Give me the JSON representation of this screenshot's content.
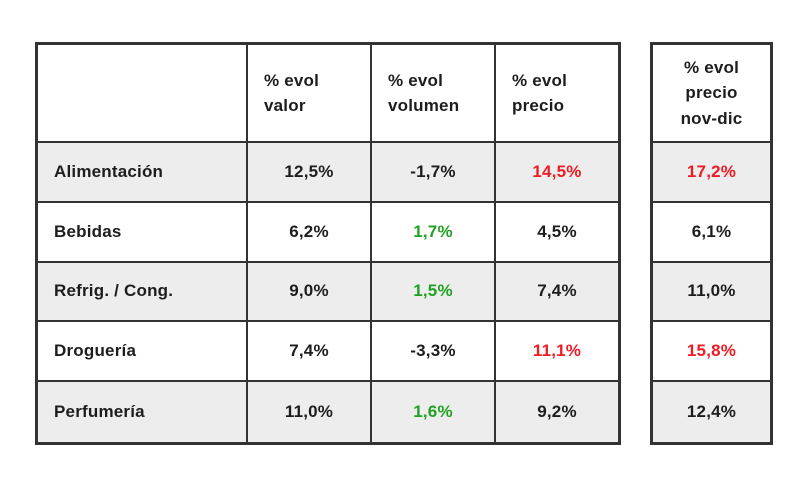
{
  "colors": {
    "text": "#1d1d1d",
    "border": "#333333",
    "row_alt": "#ededed",
    "red": "#ee1c25",
    "green": "#21a121"
  },
  "main_table": {
    "corner": "",
    "headers": [
      "% evol\nvalor",
      "% evol\nvolumen",
      "% evol\nprecio"
    ],
    "rows": [
      {
        "label": "Alimentación",
        "cells": [
          {
            "value": "12,5%",
            "tone": "dark"
          },
          {
            "value": "-1,7%",
            "tone": "dark"
          },
          {
            "value": "14,5%",
            "tone": "red"
          }
        ]
      },
      {
        "label": "Bebidas",
        "cells": [
          {
            "value": "6,2%",
            "tone": "dark"
          },
          {
            "value": "1,7%",
            "tone": "green"
          },
          {
            "value": "4,5%",
            "tone": "dark"
          }
        ]
      },
      {
        "label": "Refrig. / Cong.",
        "cells": [
          {
            "value": "9,0%",
            "tone": "dark"
          },
          {
            "value": "1,5%",
            "tone": "green"
          },
          {
            "value": "7,4%",
            "tone": "dark"
          }
        ]
      },
      {
        "label": "Droguería",
        "cells": [
          {
            "value": "7,4%",
            "tone": "dark"
          },
          {
            "value": "-3,3%",
            "tone": "dark"
          },
          {
            "value": "11,1%",
            "tone": "red"
          }
        ]
      },
      {
        "label": "Perfumería",
        "cells": [
          {
            "value": "11,0%",
            "tone": "dark"
          },
          {
            "value": "1,6%",
            "tone": "green"
          },
          {
            "value": "9,2%",
            "tone": "dark"
          }
        ]
      }
    ]
  },
  "side_table": {
    "header": "% evol\nprecio\nnov-dic",
    "cells": [
      {
        "value": "17,2%",
        "tone": "red"
      },
      {
        "value": "6,1%",
        "tone": "dark"
      },
      {
        "value": "11,0%",
        "tone": "dark"
      },
      {
        "value": "15,8%",
        "tone": "red"
      },
      {
        "value": "12,4%",
        "tone": "dark"
      }
    ]
  },
  "chart_data": {
    "type": "table",
    "columns": [
      "",
      "% evol valor",
      "% evol volumen",
      "% evol precio",
      "% evol precio nov-dic"
    ],
    "rows": [
      [
        "Alimentación",
        "12,5%",
        "-1,7%",
        "14,5%",
        "17,2%"
      ],
      [
        "Bebidas",
        "6,2%",
        "1,7%",
        "4,5%",
        "6,1%"
      ],
      [
        "Refrig. / Cong.",
        "9,0%",
        "1,5%",
        "7,4%",
        "11,0%"
      ],
      [
        "Droguería",
        "7,4%",
        "-3,3%",
        "11,1%",
        "15,8%"
      ],
      [
        "Perfumería",
        "11,0%",
        "1,6%",
        "9,2%",
        "12,4%"
      ]
    ],
    "highlights": {
      "red_cells": [
        "Alimentación % evol precio",
        "Alimentación % evol precio nov-dic",
        "Droguería % evol precio",
        "Droguería % evol precio nov-dic"
      ],
      "green_cells": [
        "Bebidas % evol volumen",
        "Refrig. / Cong. % evol volumen",
        "Perfumería % evol volumen"
      ]
    },
    "layout": "main 4-column table plus detached right-hand single column table"
  }
}
